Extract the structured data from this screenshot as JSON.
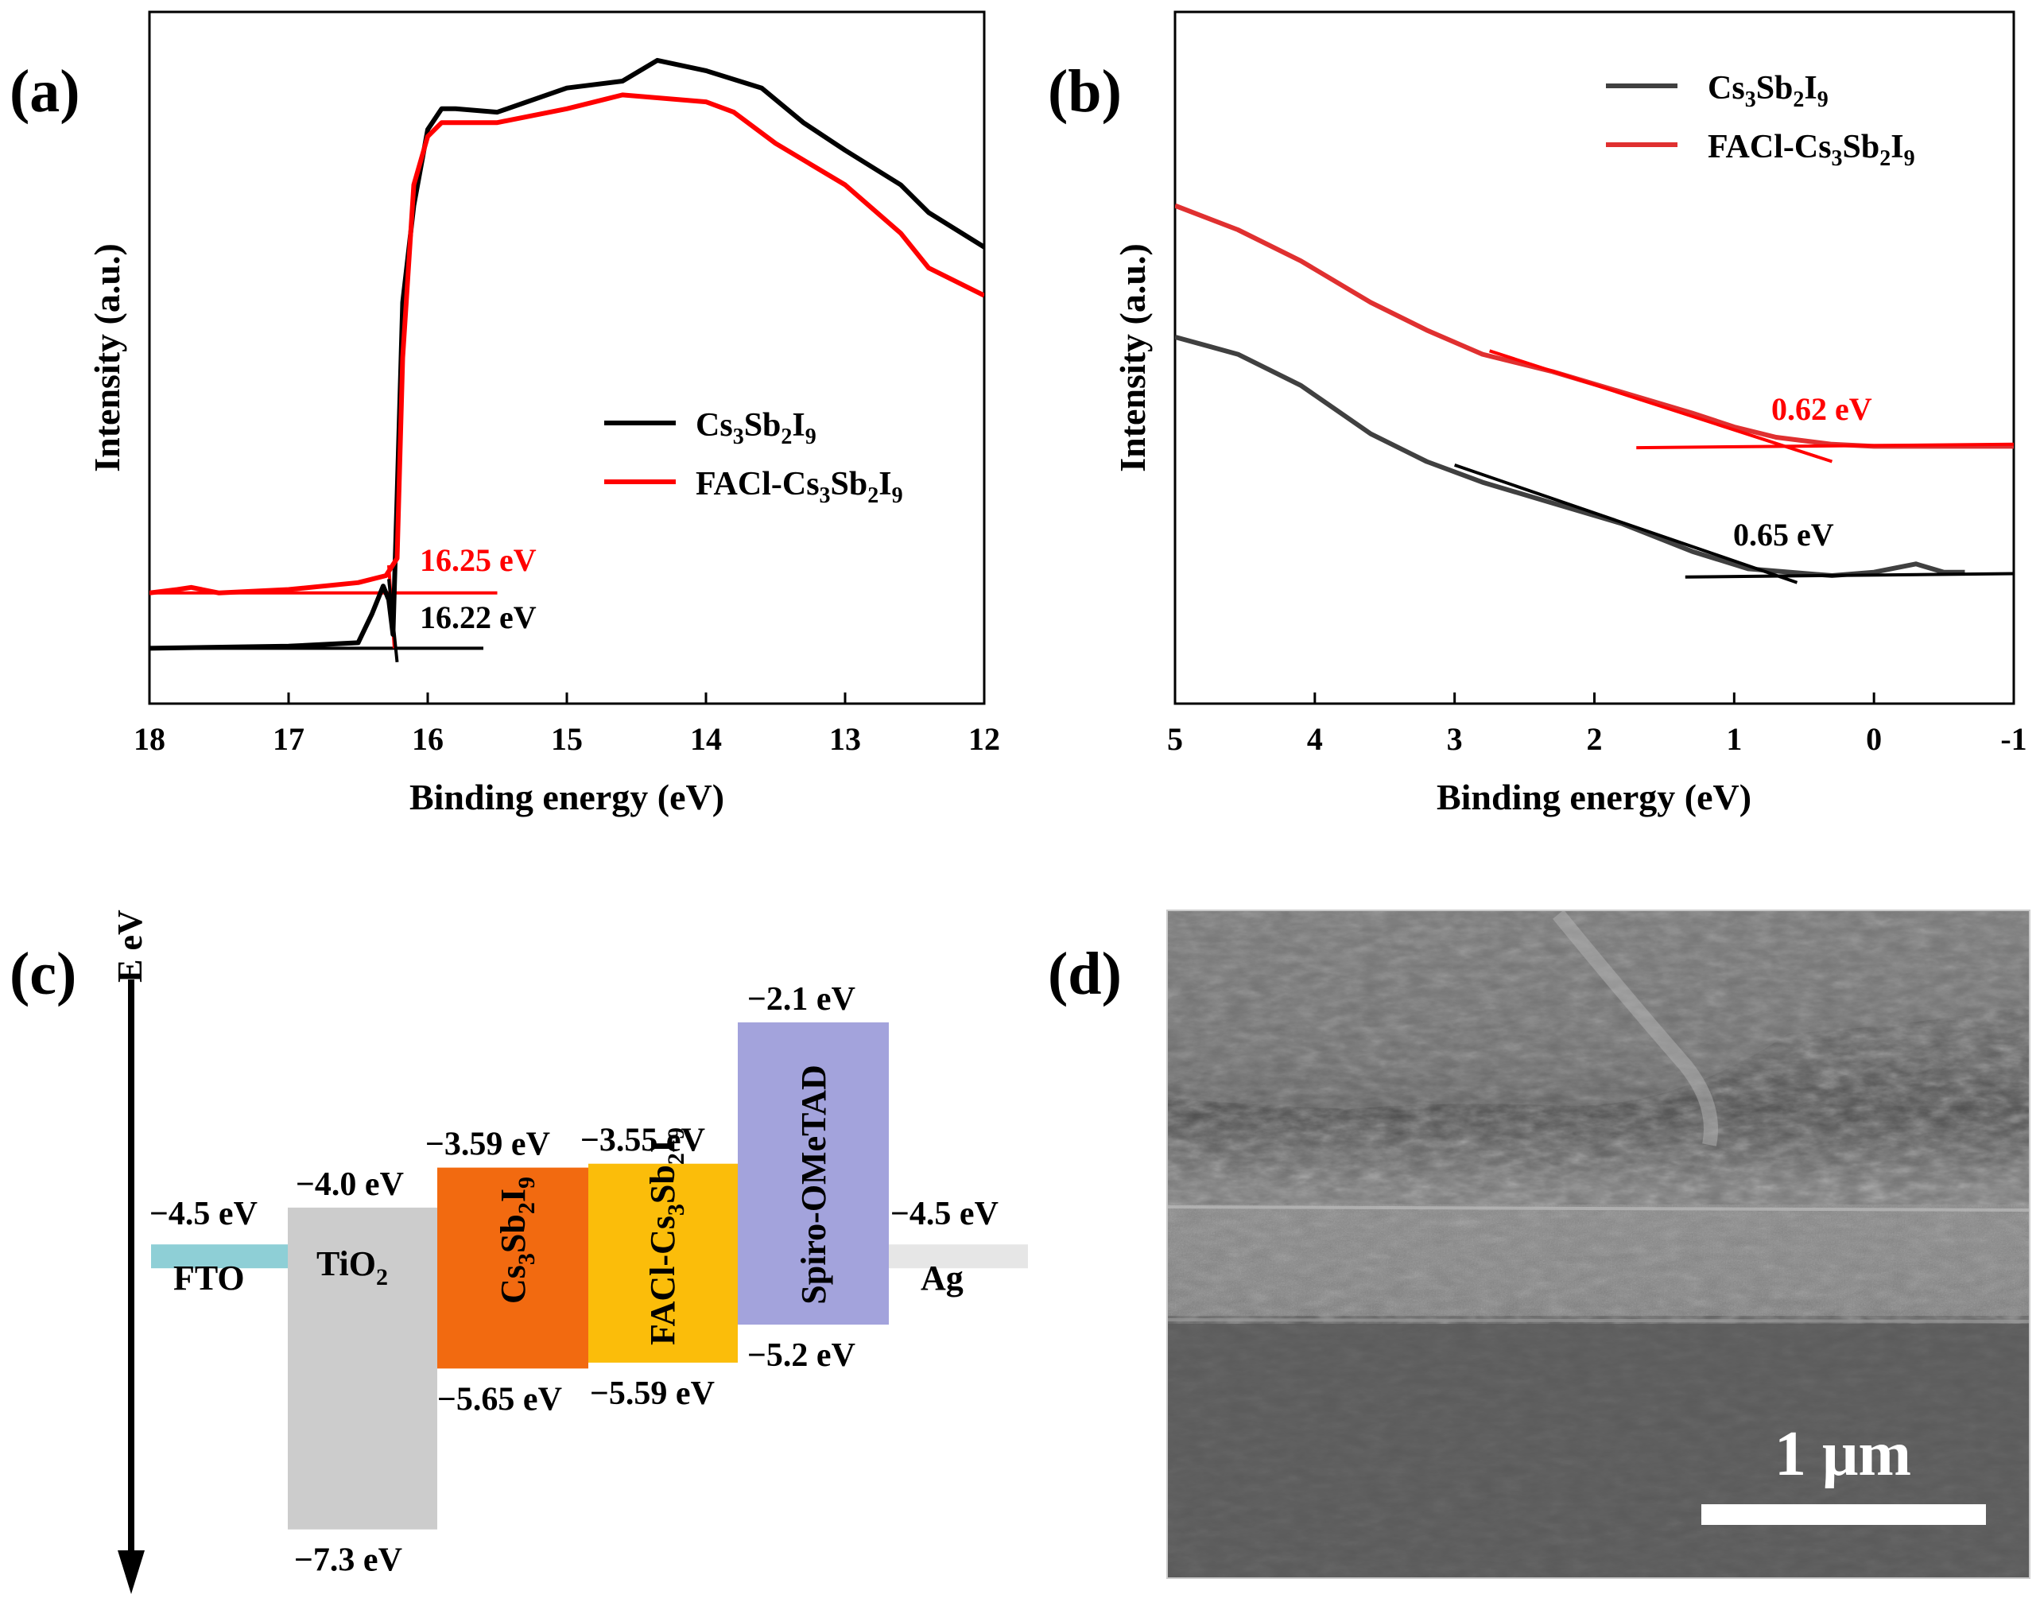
{
  "panels": {
    "a": "(a)",
    "b": "(b)",
    "c": "(c)",
    "d": "(d)"
  },
  "chart_data": [
    {
      "id": "a",
      "type": "line",
      "title": "",
      "xlabel": "Binding energy (eV)",
      "ylabel": "Intensity (a.u.)",
      "xlim": [
        18,
        12
      ],
      "xticks": [
        18,
        17,
        16,
        15,
        14,
        13,
        12
      ],
      "ylim": [
        0,
        100
      ],
      "yticks_shown": false,
      "legend_position": "center-right",
      "series": [
        {
          "name": "Cs3Sb2I9",
          "color": "#000000",
          "x": [
            18,
            17.0,
            16.5,
            16.4,
            16.32,
            16.28,
            16.25,
            16.22,
            16.18,
            16.1,
            16.0,
            15.9,
            15.8,
            15.5,
            15.0,
            14.6,
            14.35,
            14.0,
            13.6,
            13.3,
            13.0,
            12.6,
            12.4,
            12.0
          ],
          "y": [
            8,
            8.3,
            8.8,
            13,
            17,
            15,
            10,
            30,
            58,
            72,
            83,
            86,
            86,
            85.5,
            89,
            90,
            93,
            91.5,
            89,
            84,
            80,
            75,
            71,
            66
          ]
        },
        {
          "name": "FACl-Cs3Sb2I9",
          "color": "#ff0000",
          "x": [
            18,
            17.8,
            17.7,
            17.5,
            17.0,
            16.5,
            16.3,
            16.22,
            16.18,
            16.1,
            16.0,
            15.9,
            15.5,
            15.0,
            14.6,
            14.0,
            13.8,
            13.5,
            13.0,
            12.6,
            12.4,
            12.0
          ],
          "y": [
            16,
            16.5,
            16.8,
            16,
            16.5,
            17.5,
            18.5,
            21,
            50,
            75,
            82,
            84,
            84,
            86,
            88,
            87,
            85.5,
            81,
            75,
            68,
            63,
            59
          ]
        }
      ],
      "fit_lines": [
        {
          "color": "#000000",
          "x": [
            18,
            15.6
          ],
          "y": [
            8,
            8
          ]
        },
        {
          "color": "#ff0000",
          "x": [
            18,
            15.5
          ],
          "y": [
            16,
            16
          ]
        },
        {
          "color": "#ff0000",
          "x": [
            16.28,
            16.24
          ],
          "y": [
            20,
            8
          ]
        },
        {
          "color": "#000000",
          "x": [
            16.28,
            16.22
          ],
          "y": [
            18,
            6
          ]
        }
      ],
      "annotations": [
        {
          "text": "16.25 eV",
          "color": "#ff0000",
          "x": 15.8,
          "y": 20.5
        },
        {
          "text": "16.22 eV",
          "color": "#000000",
          "x": 15.8,
          "y": 12.5
        }
      ],
      "legend": [
        {
          "text": "Cs3Sb2I9",
          "color": "#000000",
          "base": "Cs",
          "s1": "3",
          "m1": "Sb",
          "s2": "2",
          "m2": "I",
          "s3": "9",
          "prefix": ""
        },
        {
          "text": "FACl-Cs3Sb2I9",
          "color": "#ff0000",
          "base": "Cs",
          "s1": "3",
          "m1": "Sb",
          "s2": "2",
          "m2": "I",
          "s3": "9",
          "prefix": "FACl-"
        }
      ]
    },
    {
      "id": "b",
      "type": "line",
      "title": "",
      "xlabel": "Binding energy (eV)",
      "ylabel": "Intensity (a.u.)",
      "xlim": [
        5,
        -1
      ],
      "xticks": [
        5,
        4,
        3,
        2,
        1,
        0,
        -1
      ],
      "ylim": [
        0,
        100
      ],
      "yticks_shown": false,
      "legend_position": "top-right",
      "series": [
        {
          "name": "Cs3Sb2I9",
          "color": "#404040",
          "x": [
            5.0,
            4.55,
            4.1,
            3.6,
            3.2,
            2.8,
            2.3,
            1.8,
            1.3,
            0.9,
            0.6,
            0.3,
            0.0,
            -0.3,
            -0.5,
            -0.65
          ],
          "y": [
            53,
            50.5,
            46,
            39,
            35,
            32,
            29,
            26,
            22,
            19.5,
            19,
            18.5,
            19,
            20.2,
            19,
            19
          ]
        },
        {
          "name": "FACl-Cs3Sb2I9",
          "color": "#e03030",
          "x": [
            5.0,
            4.55,
            4.1,
            3.6,
            3.2,
            2.8,
            2.3,
            1.8,
            1.3,
            1.0,
            0.7,
            0.3,
            0.0,
            -0.5,
            -1.0
          ],
          "y": [
            72,
            68.5,
            64,
            58,
            54,
            50.5,
            48,
            45,
            42,
            40,
            38.5,
            37.5,
            37.2,
            37.2,
            37.2
          ]
        }
      ],
      "fit_lines": [
        {
          "color": "#000000",
          "x": [
            3.0,
            0.55
          ],
          "y": [
            34.5,
            17.5
          ]
        },
        {
          "color": "#000000",
          "x": [
            1.35,
            -1.0
          ],
          "y": [
            18.3,
            18.8
          ]
        },
        {
          "color": "#ff0000",
          "x": [
            2.75,
            0.3
          ],
          "y": [
            51,
            35
          ]
        },
        {
          "color": "#ff0000",
          "x": [
            1.7,
            -1.0
          ],
          "y": [
            37,
            37.5
          ]
        }
      ],
      "annotations": [
        {
          "text": "0.62 eV",
          "color": "#ff0000",
          "x": 0.7,
          "y": 42.5
        },
        {
          "text": "0.65 eV",
          "color": "#000000",
          "x": 0.7,
          "y": 24
        }
      ],
      "legend": [
        {
          "text": "Cs3Sb2I9",
          "color": "#404040",
          "base": "Cs",
          "s1": "3",
          "m1": "Sb",
          "s2": "2",
          "m2": "I",
          "s3": "9",
          "prefix": ""
        },
        {
          "text": "FACl-Cs3Sb2I9",
          "color": "#e03030",
          "base": "Cs",
          "s1": "3",
          "m1": "Sb",
          "s2": "2",
          "m2": "I",
          "s3": "9",
          "prefix": "FACl-"
        }
      ]
    },
    {
      "id": "c",
      "type": "energy-diagram",
      "axis_label": "E eV",
      "ylim": [
        -1.4,
        -7.8
      ],
      "layers": [
        {
          "name": "FTO",
          "kind": "level",
          "level": -4.5,
          "level_label": "−4.5 eV",
          "color": "#8ecfd6"
        },
        {
          "name": "TiO2",
          "kind": "band",
          "top": -4.0,
          "bottom": -7.3,
          "top_label": "−4.0 eV",
          "bottom_label": "−7.3 eV",
          "color": "#cccccc",
          "text_color": "#000000"
        },
        {
          "name": "Cs3Sb2I9",
          "kind": "band",
          "top": -3.59,
          "bottom": -5.65,
          "top_label": "−3.59 eV",
          "bottom_label": "−5.65 eV",
          "color": "#f26a10",
          "text_color": "#000000"
        },
        {
          "name": "FACl-Cs3Sb2I9",
          "kind": "band",
          "top": -3.55,
          "bottom": -5.59,
          "top_label": "−3.55 eV",
          "bottom_label": "−5.59 eV",
          "color": "#fbbd0a",
          "text_color": "#000000"
        },
        {
          "name": "Spiro-OMeTAD",
          "kind": "band",
          "top": -2.1,
          "bottom": -5.2,
          "top_label": "−2.1 eV",
          "bottom_label": "−5.2 eV",
          "color": "#a3a3dc",
          "text_color": "#000000"
        },
        {
          "name": "Ag",
          "kind": "level",
          "level": -4.5,
          "level_label": "−4.5 eV",
          "color": "#e6e6e6"
        }
      ]
    }
  ],
  "sem": {
    "scale_bar_label": "1 μm"
  }
}
